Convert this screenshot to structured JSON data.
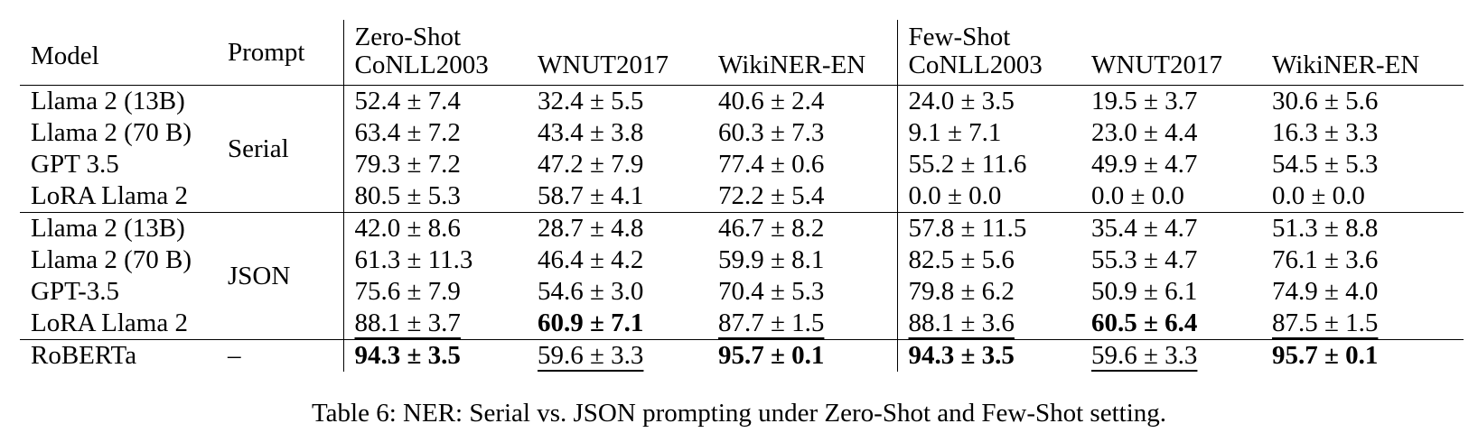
{
  "table": {
    "headers": {
      "model": "Model",
      "prompt": "Prompt",
      "zero_shot": "Zero-Shot",
      "few_shot": "Few-Shot",
      "datasets": [
        "CoNLL2003",
        "WNUT2017",
        "WikiNER-EN"
      ]
    },
    "groups": [
      {
        "prompt": "Serial",
        "rows": [
          {
            "model": "Llama 2 (13B)",
            "cells": [
              {
                "text": "52.4 ± 7.4",
                "bold": false,
                "underline": false
              },
              {
                "text": "32.4 ± 5.5",
                "bold": false,
                "underline": false
              },
              {
                "text": "40.6 ± 2.4",
                "bold": false,
                "underline": false
              },
              {
                "text": "24.0 ± 3.5",
                "bold": false,
                "underline": false
              },
              {
                "text": "19.5 ± 3.7",
                "bold": false,
                "underline": false
              },
              {
                "text": "30.6 ± 5.6",
                "bold": false,
                "underline": false
              }
            ]
          },
          {
            "model": "Llama 2 (70 B)",
            "cells": [
              {
                "text": "63.4 ± 7.2",
                "bold": false,
                "underline": false
              },
              {
                "text": "43.4 ± 3.8",
                "bold": false,
                "underline": false
              },
              {
                "text": "60.3 ± 7.3",
                "bold": false,
                "underline": false
              },
              {
                "text": "9.1 ± 7.1",
                "bold": false,
                "underline": false
              },
              {
                "text": "23.0 ± 4.4",
                "bold": false,
                "underline": false
              },
              {
                "text": "16.3 ± 3.3",
                "bold": false,
                "underline": false
              }
            ]
          },
          {
            "model": "GPT 3.5",
            "cells": [
              {
                "text": "79.3 ± 7.2",
                "bold": false,
                "underline": false
              },
              {
                "text": "47.2 ± 7.9",
                "bold": false,
                "underline": false
              },
              {
                "text": "77.4 ± 0.6",
                "bold": false,
                "underline": false
              },
              {
                "text": "55.2 ± 11.6",
                "bold": false,
                "underline": false
              },
              {
                "text": "49.9 ± 4.7",
                "bold": false,
                "underline": false
              },
              {
                "text": "54.5 ± 5.3",
                "bold": false,
                "underline": false
              }
            ]
          },
          {
            "model": "LoRA Llama 2",
            "cells": [
              {
                "text": "80.5 ± 5.3",
                "bold": false,
                "underline": false
              },
              {
                "text": "58.7 ± 4.1",
                "bold": false,
                "underline": false
              },
              {
                "text": "72.2 ± 5.4",
                "bold": false,
                "underline": false
              },
              {
                "text": "0.0 ± 0.0",
                "bold": false,
                "underline": false
              },
              {
                "text": "0.0 ± 0.0",
                "bold": false,
                "underline": false
              },
              {
                "text": "0.0 ± 0.0",
                "bold": false,
                "underline": false
              }
            ]
          }
        ]
      },
      {
        "prompt": "JSON",
        "rows": [
          {
            "model": "Llama 2 (13B)",
            "cells": [
              {
                "text": "42.0 ± 8.6",
                "bold": false,
                "underline": false
              },
              {
                "text": "28.7 ± 4.8",
                "bold": false,
                "underline": false
              },
              {
                "text": "46.7 ± 8.2",
                "bold": false,
                "underline": false
              },
              {
                "text": "57.8 ± 11.5",
                "bold": false,
                "underline": false
              },
              {
                "text": "35.4 ± 4.7",
                "bold": false,
                "underline": false
              },
              {
                "text": "51.3 ± 8.8",
                "bold": false,
                "underline": false
              }
            ]
          },
          {
            "model": "Llama 2 (70 B)",
            "cells": [
              {
                "text": "61.3 ± 11.3",
                "bold": false,
                "underline": false
              },
              {
                "text": "46.4 ± 4.2",
                "bold": false,
                "underline": false
              },
              {
                "text": "59.9 ± 8.1",
                "bold": false,
                "underline": false
              },
              {
                "text": "82.5 ± 5.6",
                "bold": false,
                "underline": false
              },
              {
                "text": "55.3 ± 4.7",
                "bold": false,
                "underline": false
              },
              {
                "text": "76.1 ± 3.6",
                "bold": false,
                "underline": false
              }
            ]
          },
          {
            "model": "GPT-3.5",
            "cells": [
              {
                "text": "75.6 ± 7.9",
                "bold": false,
                "underline": false
              },
              {
                "text": "54.6 ± 3.0",
                "bold": false,
                "underline": false
              },
              {
                "text": "70.4 ± 5.3",
                "bold": false,
                "underline": false
              },
              {
                "text": "79.8 ± 6.2",
                "bold": false,
                "underline": false
              },
              {
                "text": "50.9 ± 6.1",
                "bold": false,
                "underline": false
              },
              {
                "text": "74.9 ± 4.0",
                "bold": false,
                "underline": false
              }
            ]
          },
          {
            "model": "LoRA Llama 2",
            "cells": [
              {
                "text": "88.1 ± 3.7",
                "bold": false,
                "underline": true
              },
              {
                "text": "60.9 ± 7.1",
                "bold": true,
                "underline": false
              },
              {
                "text": "87.7 ± 1.5",
                "bold": false,
                "underline": true
              },
              {
                "text": "88.1 ± 3.6",
                "bold": false,
                "underline": true
              },
              {
                "text": "60.5 ± 6.4",
                "bold": true,
                "underline": false
              },
              {
                "text": "87.5 ± 1.5",
                "bold": false,
                "underline": true
              }
            ]
          }
        ]
      },
      {
        "prompt": "–",
        "rows": [
          {
            "model": "RoBERTa",
            "cells": [
              {
                "text": "94.3 ± 3.5",
                "bold": true,
                "underline": false
              },
              {
                "text": "59.6 ± 3.3",
                "bold": false,
                "underline": true
              },
              {
                "text": "95.7 ± 0.1",
                "bold": true,
                "underline": false
              },
              {
                "text": "94.3 ± 3.5",
                "bold": true,
                "underline": false
              },
              {
                "text": "59.6 ± 3.3",
                "bold": false,
                "underline": true
              },
              {
                "text": "95.7 ± 0.1",
                "bold": true,
                "underline": false
              }
            ]
          }
        ]
      }
    ]
  },
  "caption": "Table 6: NER: Serial vs. JSON prompting under Zero-Shot and Few-Shot setting."
}
